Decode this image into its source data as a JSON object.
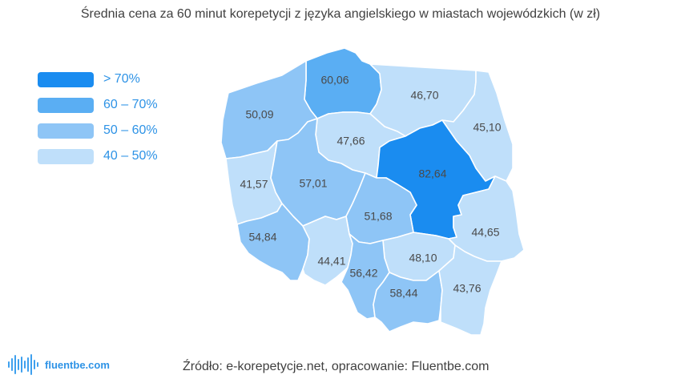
{
  "title": "Średnia cena za 60 minut korepetycji z języka angielskiego w miastach wojewódzkich (w zł)",
  "legend": [
    {
      "label": "> 70%",
      "color": "#1a8cf0"
    },
    {
      "label": "60 – 70%",
      "color": "#5aaef3"
    },
    {
      "label": "50 – 60%",
      "color": "#8ec5f6"
    },
    {
      "label": "40 – 50%",
      "color": "#bfdffa"
    }
  ],
  "regions": [
    {
      "name": "pomorskie",
      "value": "60,06",
      "color": "#5aaef3"
    },
    {
      "name": "zachodniopomorskie",
      "value": "50,09",
      "color": "#8ec5f6"
    },
    {
      "name": "warminsko-mazurskie",
      "value": "46,70",
      "color": "#bfdffa"
    },
    {
      "name": "podlaskie",
      "value": "45,10",
      "color": "#bfdffa"
    },
    {
      "name": "kujawsko-pomorskie",
      "value": "47,66",
      "color": "#bfdffa"
    },
    {
      "name": "mazowieckie",
      "value": "82,64",
      "color": "#1a8cf0"
    },
    {
      "name": "lubuskie",
      "value": "41,57",
      "color": "#bfdffa"
    },
    {
      "name": "wielkopolskie",
      "value": "57,01",
      "color": "#8ec5f6"
    },
    {
      "name": "lodzkie",
      "value": "51,68",
      "color": "#8ec5f6"
    },
    {
      "name": "lubelskie",
      "value": "44,65",
      "color": "#bfdffa"
    },
    {
      "name": "dolnoslaskie",
      "value": "54,84",
      "color": "#8ec5f6"
    },
    {
      "name": "opolskie",
      "value": "44,41",
      "color": "#bfdffa"
    },
    {
      "name": "swietokrzyskie",
      "value": "48,10",
      "color": "#bfdffa"
    },
    {
      "name": "slaskie",
      "value": "56,42",
      "color": "#8ec5f6"
    },
    {
      "name": "malopolskie",
      "value": "58,44",
      "color": "#8ec5f6"
    },
    {
      "name": "podkarpackie",
      "value": "43,76",
      "color": "#bfdffa"
    }
  ],
  "logo": {
    "text": "fluentbe.com",
    "color": "#3ea0ee"
  },
  "source": "Źródło: e-korepetycje.net, opracowanie: Fluentbe.com"
}
